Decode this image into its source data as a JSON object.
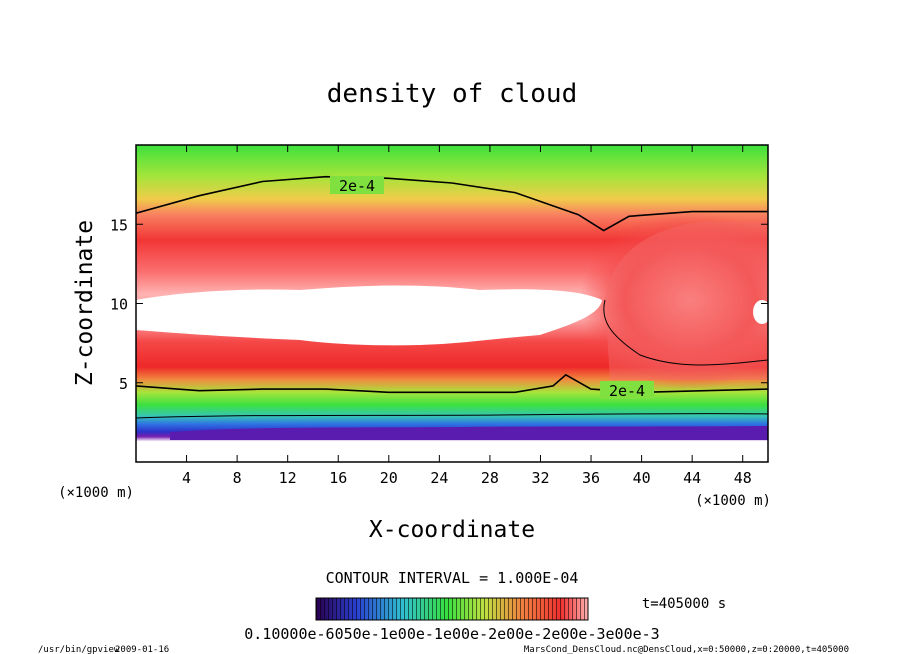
{
  "chart_data": {
    "type": "heatmap",
    "title": "density of cloud",
    "xlabel": "X-coordinate",
    "ylabel": "Z-coordinate",
    "x_unit": "(×1000 m)",
    "y_unit": "(×1000 m)",
    "xlim": [
      0,
      50
    ],
    "ylim": [
      0,
      20
    ],
    "x_ticks": [
      4,
      8,
      12,
      16,
      20,
      24,
      28,
      32,
      36,
      40,
      44,
      48
    ],
    "y_ticks": [
      5,
      10,
      15
    ],
    "contour_label": "2e-4",
    "contour_interval": "CONTOUR INTERVAL = 1.000E-04",
    "time_label": "t=405000 s",
    "colorbar_labels": "0.10000e-6050e-1e00e-1e00e-2e00e-2e00e-3e00e-3",
    "upper_contour_z": [
      [
        0,
        15.7
      ],
      [
        5,
        16.8
      ],
      [
        10,
        17.7
      ],
      [
        15,
        18.0
      ],
      [
        20,
        17.9
      ],
      [
        25,
        17.6
      ],
      [
        30,
        17.0
      ],
      [
        35,
        15.6
      ],
      [
        37,
        14.6
      ],
      [
        39,
        15.5
      ],
      [
        44,
        15.8
      ],
      [
        50,
        15.8
      ]
    ],
    "lower_contour_z": [
      [
        0,
        4.8
      ],
      [
        5,
        4.5
      ],
      [
        10,
        4.6
      ],
      [
        15,
        4.6
      ],
      [
        20,
        4.4
      ],
      [
        25,
        4.4
      ],
      [
        30,
        4.4
      ],
      [
        33,
        4.8
      ],
      [
        34,
        5.5
      ],
      [
        36,
        4.6
      ],
      [
        40,
        4.4
      ],
      [
        45,
        4.5
      ],
      [
        50,
        4.6
      ]
    ]
  },
  "footer": {
    "program": "/usr/bin/gpview",
    "date": "2009-01-16",
    "source": "MarsCond_DensCloud.nc@DensCloud,x=0:50000,z=0:20000,t=405000"
  }
}
